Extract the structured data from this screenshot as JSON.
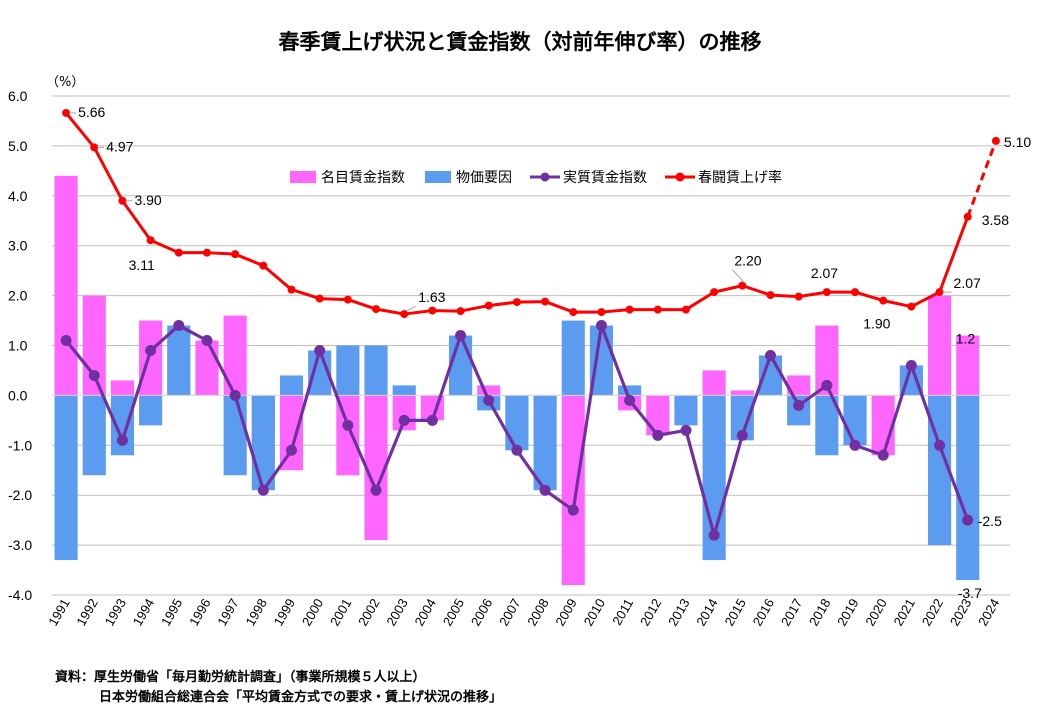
{
  "chart_data": {
    "type": "bar",
    "title": "春季賃上げ状況と賃金指数（対前年伸び率）の推移",
    "unit_label": "（%）",
    "ylim": [
      -4.0,
      6.0
    ],
    "y_ticks": [
      "6.0",
      "5.0",
      "4.0",
      "3.0",
      "2.0",
      "1.0",
      "0.0",
      "-1.0",
      "-2.0",
      "-3.0",
      "-4.0"
    ],
    "grid": true,
    "legend_position": "top-right",
    "categories": [
      "1991",
      "1992",
      "1993",
      "1994",
      "1995",
      "1996",
      "1997",
      "1998",
      "1999",
      "2000",
      "2001",
      "2002",
      "2003",
      "2004",
      "2005",
      "2006",
      "2007",
      "2008",
      "2009",
      "2010",
      "2011",
      "2012",
      "2013",
      "2014",
      "2015",
      "2016",
      "2017",
      "2018",
      "2019",
      "2020",
      "2021",
      "2022",
      "2023",
      "2024"
    ],
    "series": [
      {
        "name": "名目賃金指数",
        "kind": "bar",
        "color": "#ff66ff",
        "values": [
          4.4,
          2.0,
          0.3,
          1.5,
          1.1,
          1.1,
          1.6,
          -1.3,
          -1.5,
          0.1,
          -1.6,
          -2.9,
          -0.7,
          -0.5,
          0.8,
          0.2,
          -0.9,
          -0.3,
          -3.8,
          0.6,
          -0.3,
          -0.8,
          -0.2,
          0.5,
          0.1,
          0.6,
          0.4,
          1.4,
          -0.4,
          -1.2,
          0.3,
          2.0,
          1.2,
          null
        ]
      },
      {
        "name": "物価要因",
        "kind": "bar",
        "color": "#5b9bf0",
        "values": [
          -3.3,
          -1.6,
          -1.2,
          -0.6,
          1.4,
          0.0,
          -1.6,
          -1.9,
          0.4,
          0.9,
          1.0,
          1.0,
          0.2,
          0.0,
          1.2,
          -0.3,
          -1.1,
          -1.9,
          1.5,
          1.4,
          0.2,
          0.0,
          -0.6,
          -3.3,
          -0.9,
          0.8,
          -0.6,
          -1.2,
          -1.0,
          0.0,
          0.6,
          -3.0,
          -3.7,
          null
        ]
      },
      {
        "name": "実質賃金指数",
        "kind": "line",
        "color": "#7030a0",
        "values": [
          1.1,
          0.4,
          -0.9,
          0.9,
          1.4,
          1.1,
          0.0,
          -1.9,
          -1.1,
          0.9,
          -0.6,
          -1.9,
          -0.5,
          -0.5,
          1.2,
          -0.1,
          -1.1,
          -1.9,
          -2.3,
          1.4,
          -0.1,
          -0.8,
          -0.7,
          -2.8,
          -0.8,
          0.8,
          -0.2,
          0.2,
          -1.0,
          -1.2,
          0.6,
          -1.0,
          -2.5,
          null
        ]
      },
      {
        "name": "春闘賃上げ率",
        "kind": "line",
        "color": "#ff0000",
        "values": [
          5.66,
          4.97,
          3.9,
          3.11,
          2.86,
          2.86,
          2.83,
          2.6,
          2.12,
          1.94,
          1.92,
          1.73,
          1.63,
          1.7,
          1.69,
          1.8,
          1.87,
          1.88,
          1.67,
          1.67,
          1.72,
          1.72,
          1.72,
          2.07,
          2.2,
          2.01,
          1.98,
          2.07,
          2.07,
          1.9,
          1.78,
          2.07,
          3.58,
          5.1
        ],
        "dashed_last_segment": true
      }
    ],
    "data_labels": [
      {
        "series": "春闘賃上げ率",
        "index": 0,
        "text": "5.66"
      },
      {
        "series": "春闘賃上げ率",
        "index": 1,
        "text": "4.97"
      },
      {
        "series": "春闘賃上げ率",
        "index": 2,
        "text": "3.90"
      },
      {
        "series": "春闘賃上げ率",
        "index": 3,
        "text": "3.11"
      },
      {
        "series": "春闘賃上げ率",
        "index": 12,
        "text": "1.63"
      },
      {
        "series": "春闘賃上げ率",
        "index": 24,
        "text": "2.20"
      },
      {
        "series": "春闘賃上げ率",
        "index": 27,
        "text": "2.07"
      },
      {
        "series": "春闘賃上げ率",
        "index": 29,
        "text": "1.90"
      },
      {
        "series": "春闘賃上げ率",
        "index": 31,
        "text": "2.07"
      },
      {
        "series": "春闘賃上げ率",
        "index": 32,
        "text": "3.58"
      },
      {
        "series": "春闘賃上げ率",
        "index": 33,
        "text": "5.10"
      },
      {
        "series": "名目賃金指数",
        "index": 32,
        "text": "1.2"
      },
      {
        "series": "実質賃金指数",
        "index": 32,
        "text": "-2.5"
      },
      {
        "series": "物価要因",
        "index": 32,
        "text": "-3.7"
      }
    ]
  },
  "source": {
    "line1": "資料：厚生労働省「毎月勤労統計調査」（事業所規模５人以上）",
    "line2": "日本労働組合総連合会「平均賃金方式での要求・賃上げ状況の推移」"
  }
}
